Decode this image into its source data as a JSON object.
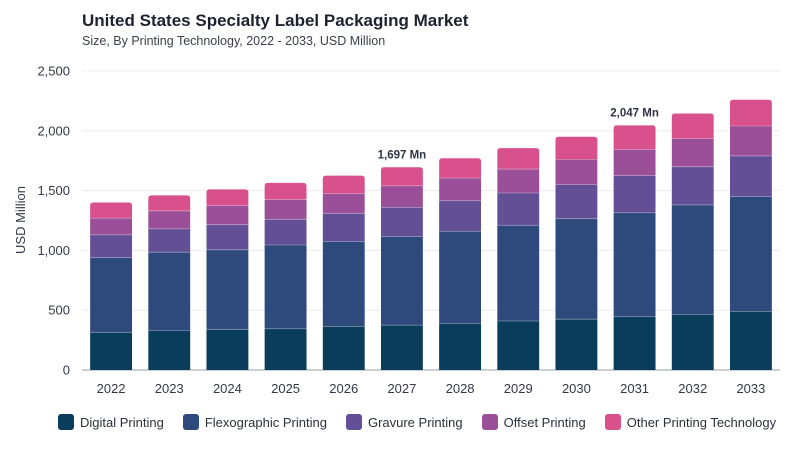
{
  "header": {
    "title": "United States Specialty Label Packaging Market",
    "subtitle": "Size, By Printing Technology, 2022 - 2033, USD Million"
  },
  "chart_data": {
    "type": "bar",
    "stacked": true,
    "title": "United States Specialty Label Packaging Market",
    "subtitle": "Size, By Printing Technology, 2022 - 2033, USD Million",
    "xlabel": "",
    "ylabel": "USD Million",
    "ylim": [
      0,
      2500
    ],
    "yticks": [
      0,
      500,
      1000,
      1500,
      2000,
      2500
    ],
    "ytick_labels": [
      "0",
      "500",
      "1,000",
      "1,500",
      "2,000",
      "2,500"
    ],
    "grid": true,
    "legend_position": "bottom",
    "categories": [
      "2022",
      "2023",
      "2024",
      "2025",
      "2026",
      "2027",
      "2028",
      "2029",
      "2030",
      "2031",
      "2032",
      "2033"
    ],
    "series": [
      {
        "name": "Digital Printing",
        "color": "#0a3d5c",
        "values": [
          315,
          330,
          340,
          345,
          365,
          375,
          390,
          410,
          425,
          445,
          465,
          490
        ]
      },
      {
        "name": "Flexographic Printing",
        "color": "#2e4a7d",
        "values": [
          625,
          655,
          665,
          700,
          710,
          740,
          770,
          800,
          840,
          870,
          915,
          960
        ]
      },
      {
        "name": "Gravure Printing",
        "color": "#634f96",
        "values": [
          190,
          195,
          210,
          215,
          235,
          245,
          255,
          270,
          285,
          310,
          320,
          340
        ]
      },
      {
        "name": "Offset Printing",
        "color": "#9b4f98",
        "values": [
          140,
          150,
          160,
          165,
          165,
          180,
          190,
          200,
          210,
          220,
          235,
          250
        ]
      },
      {
        "name": "Other Printing Technology",
        "color": "#d8508c",
        "values": [
          130,
          130,
          135,
          140,
          150,
          155,
          165,
          175,
          190,
          200,
          210,
          220
        ]
      }
    ],
    "annotations": [
      {
        "category": "2027",
        "text": "1,697 Mn"
      },
      {
        "category": "2031",
        "text": "2,047 Mn"
      }
    ]
  }
}
